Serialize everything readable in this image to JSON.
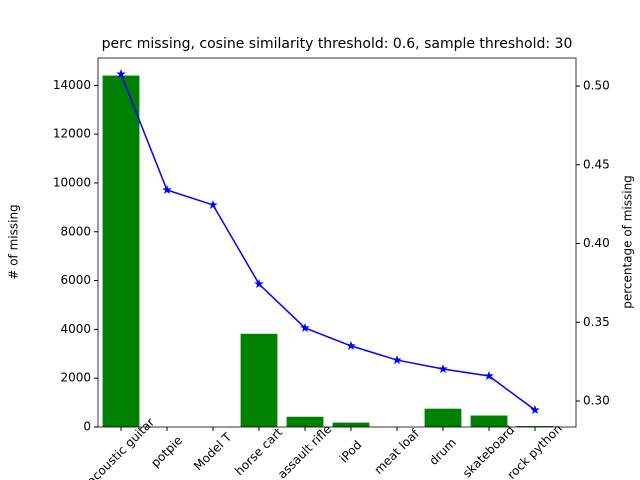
{
  "chart_data": {
    "type": "bar_line",
    "title": "perc missing, cosine similarity threshold: 0.6, sample threshold: 30",
    "ylabel": "# of missing",
    "y2label": "percentage of missing",
    "categories": [
      "acoustic guitar",
      "potpie",
      "Model T",
      "horse cart",
      "assault rifle",
      "iPod",
      "meat loaf",
      "drum",
      "skateboard",
      "rock python"
    ],
    "series": [
      {
        "type": "bar",
        "color": "#008000",
        "values": [
          14400,
          0,
          0,
          3820,
          420,
          180,
          0,
          750,
          470,
          40
        ]
      },
      {
        "type": "line",
        "axis": "y2",
        "color": "#0000ff",
        "values": [
          0.5076,
          0.434,
          0.4245,
          0.3743,
          0.3464,
          0.335,
          0.326,
          0.3203,
          0.3159,
          0.2943
        ]
      }
    ],
    "ylim": [
      0,
      15120
    ],
    "yticks": [
      0,
      2000,
      4000,
      6000,
      8000,
      10000,
      12000,
      14000
    ],
    "y2lim": [
      0.2835,
      0.5178
    ],
    "y2ticks": [
      {
        "value": 0.3,
        "label": "0.30"
      },
      0.35,
      {
        "value": 0.4,
        "label": "0.40"
      },
      0.45,
      {
        "value": 0.5,
        "label": "0.50"
      }
    ]
  }
}
